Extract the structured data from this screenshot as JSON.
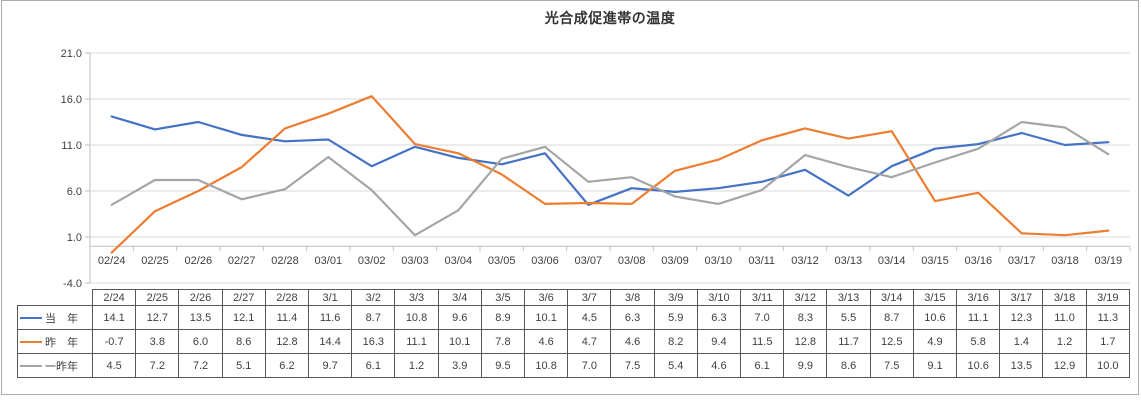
{
  "chart_data": {
    "type": "line",
    "title": "光合成促進帯の温度",
    "x_labels": [
      "02/24",
      "02/25",
      "02/26",
      "02/27",
      "02/28",
      "03/01",
      "03/02",
      "03/03",
      "03/04",
      "03/05",
      "03/06",
      "03/07",
      "03/08",
      "03/09",
      "03/10",
      "03/11",
      "03/12",
      "03/13",
      "03/14",
      "03/15",
      "03/16",
      "03/17",
      "03/18",
      "03/19"
    ],
    "table_headers": [
      "2/24",
      "2/25",
      "2/26",
      "2/27",
      "2/28",
      "3/1",
      "3/2",
      "3/3",
      "3/4",
      "3/5",
      "3/6",
      "3/7",
      "3/8",
      "3/9",
      "3/10",
      "3/11",
      "3/12",
      "3/13",
      "3/14",
      "3/15",
      "3/16",
      "3/17",
      "3/18",
      "3/19"
    ],
    "y_tick_labels": [
      "21.0",
      "16.0",
      "11.0",
      "6.0",
      "1.0",
      "-4.0"
    ],
    "ylim": [
      -4.0,
      21.0
    ],
    "x_axis_cross_value": 0,
    "grid": true,
    "legend_position": "data-table-left",
    "series": [
      {
        "name": "当　年",
        "color": "#4472C4",
        "values": [
          14.1,
          12.7,
          13.5,
          12.1,
          11.4,
          11.6,
          8.7,
          10.8,
          9.6,
          8.9,
          10.1,
          4.5,
          6.3,
          5.9,
          6.3,
          7.0,
          8.3,
          5.5,
          8.7,
          10.6,
          11.1,
          12.3,
          11.0,
          11.3
        ]
      },
      {
        "name": "昨　年",
        "color": "#ED7D31",
        "values": [
          -0.7,
          3.8,
          6.0,
          8.6,
          12.8,
          14.4,
          16.3,
          11.1,
          10.1,
          7.8,
          4.6,
          4.7,
          4.6,
          8.2,
          9.4,
          11.5,
          12.8,
          11.7,
          12.5,
          4.9,
          5.8,
          1.4,
          1.2,
          1.7
        ]
      },
      {
        "name": "一昨年",
        "color": "#A5A5A5",
        "values": [
          4.5,
          7.2,
          7.2,
          5.1,
          6.2,
          9.7,
          6.1,
          1.2,
          3.9,
          9.5,
          10.8,
          7.0,
          7.5,
          5.4,
          4.6,
          6.1,
          9.9,
          8.6,
          7.5,
          9.1,
          10.6,
          13.5,
          12.9,
          10.0
        ]
      }
    ]
  },
  "palette": {
    "gridline": "#D9D9D9",
    "axis": "#BFBFBF",
    "axis_text": "#404040",
    "table_border": "#595959",
    "frame_border": "#ABABAB"
  }
}
